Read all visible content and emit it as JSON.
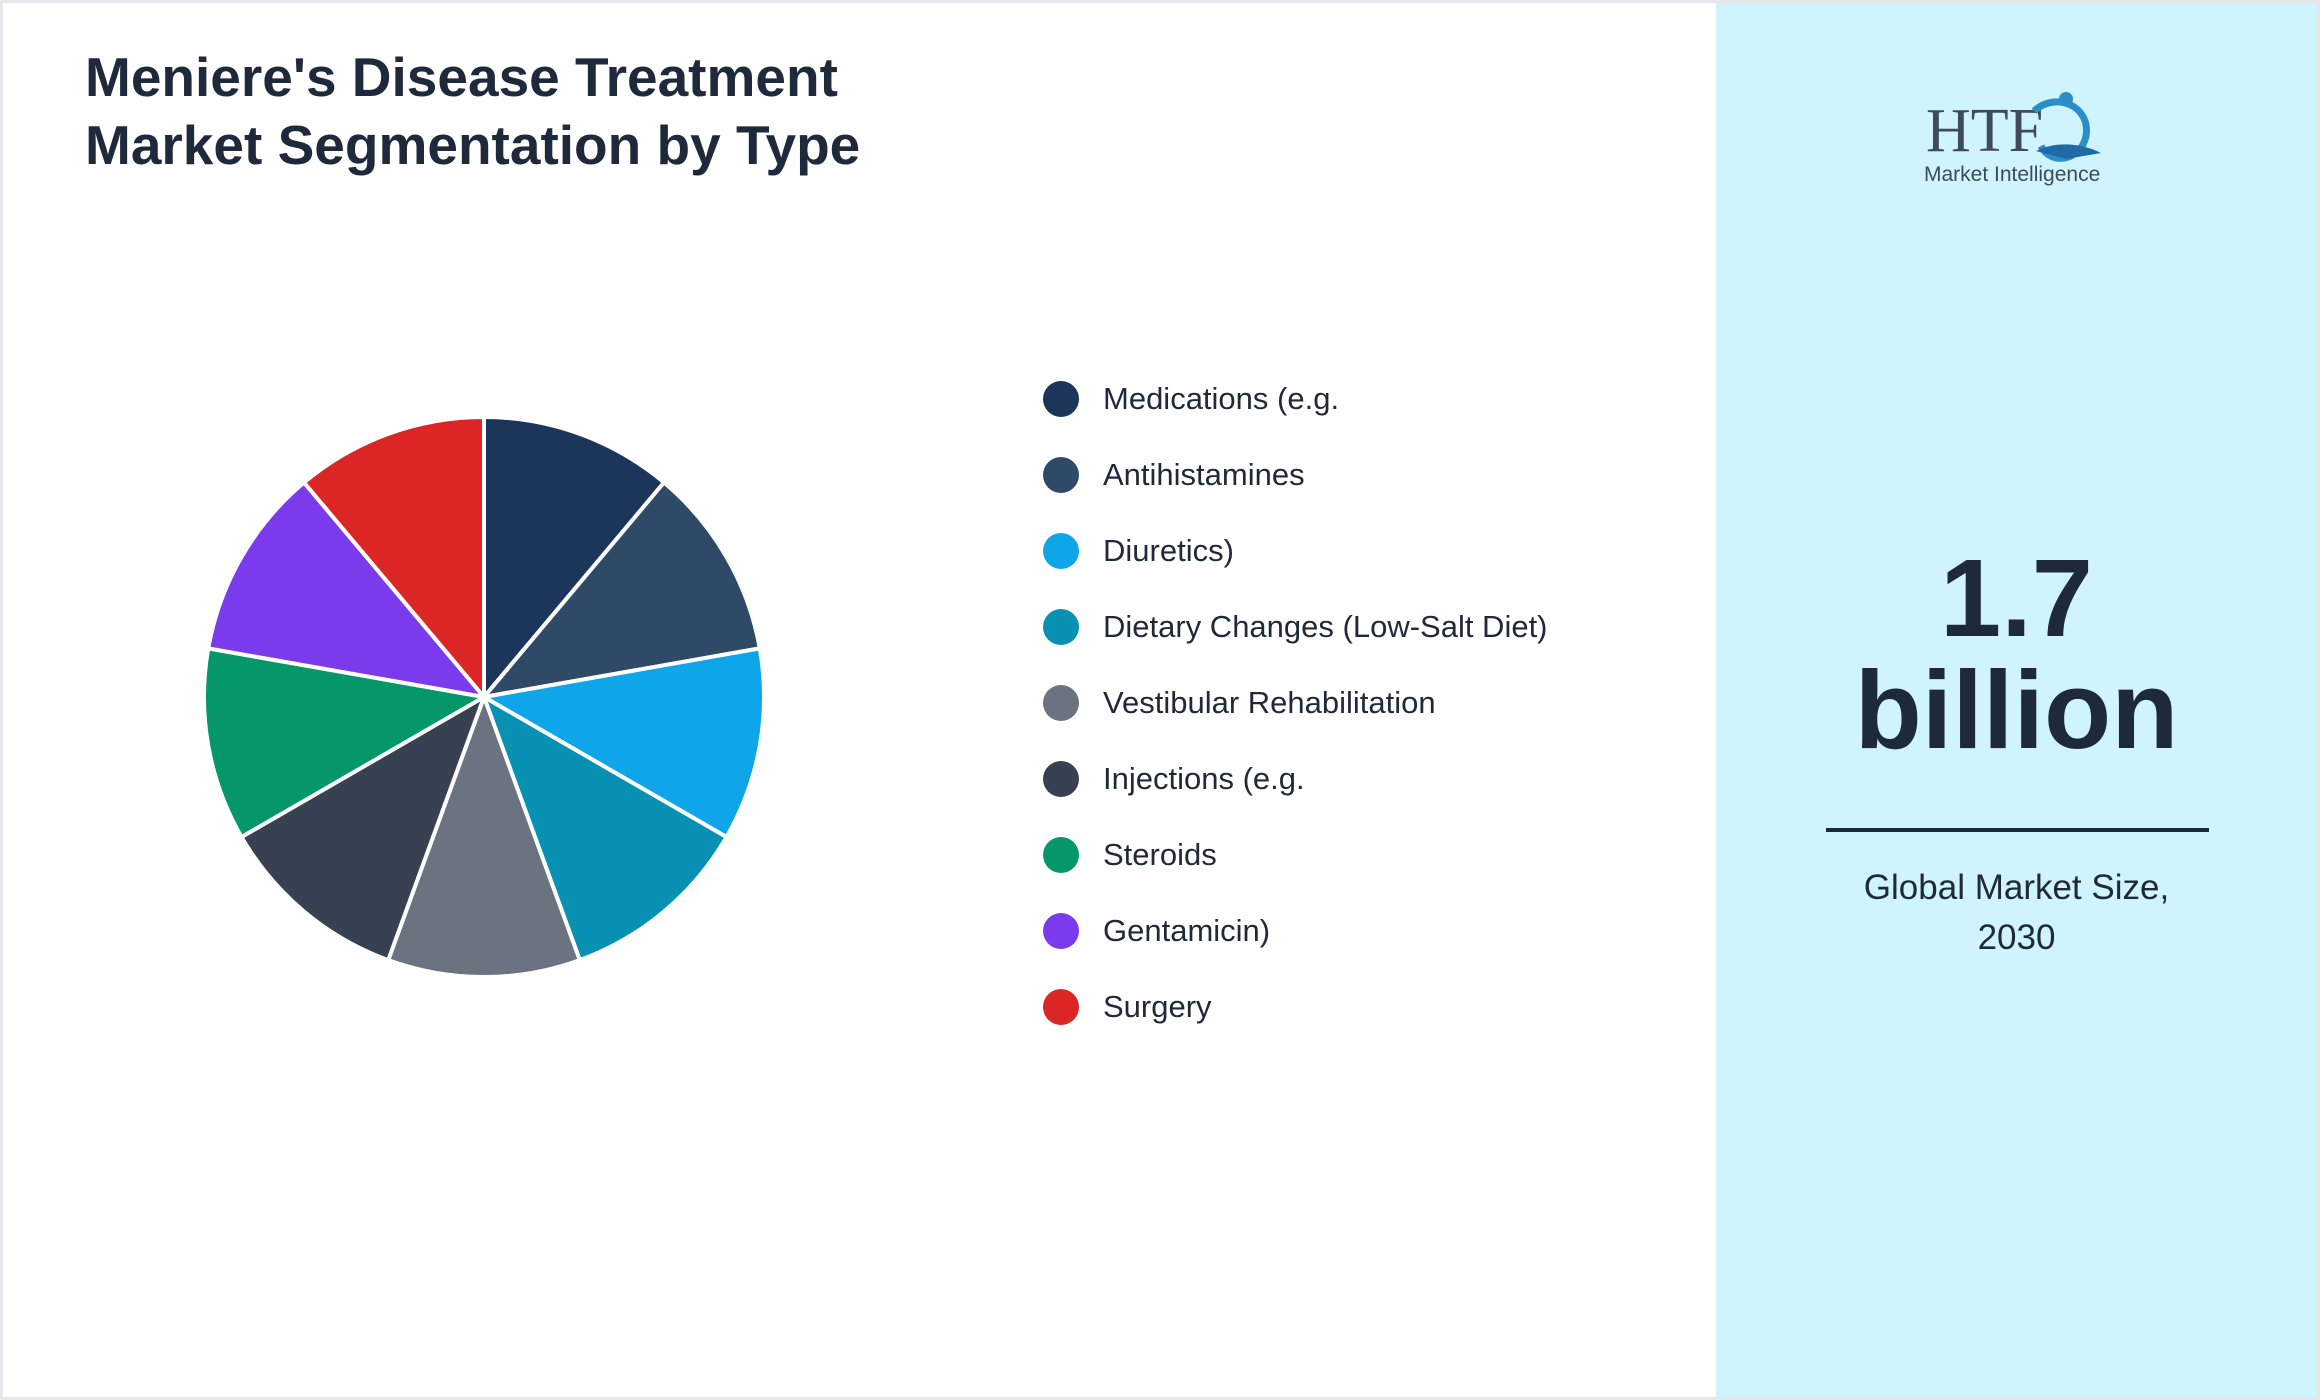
{
  "title": {
    "line1": "Meniere's Disease Treatment",
    "line2": "Market Segmentation by Type"
  },
  "chart_data": {
    "type": "pie",
    "categories": [
      "Medications (e.g.",
      "Antihistamines",
      "Diuretics)",
      "Dietary Changes (Low-Salt Diet)",
      "Vestibular Rehabilitation",
      "Injections (e.g.",
      "Steroids",
      "Gentamicin)",
      "Surgery"
    ],
    "values": [
      1,
      1,
      1,
      1,
      1,
      1,
      1,
      1,
      1
    ],
    "colors": [
      "#1b355b",
      "#2e4a66",
      "#0ea5e9",
      "#0891b2",
      "#6b7280",
      "#374151",
      "#059669",
      "#7c3aed",
      "#dc2626"
    ],
    "legend_position": "right",
    "start": "top, clockwise"
  },
  "sidebar": {
    "logo_top": "HTF",
    "logo_bottom": "Market Intelligence",
    "value_line1": "1.7",
    "value_line2": "billion",
    "caption_line1": "Global Market Size,",
    "caption_line2": "2030",
    "bg_color": "#cff4fc"
  }
}
